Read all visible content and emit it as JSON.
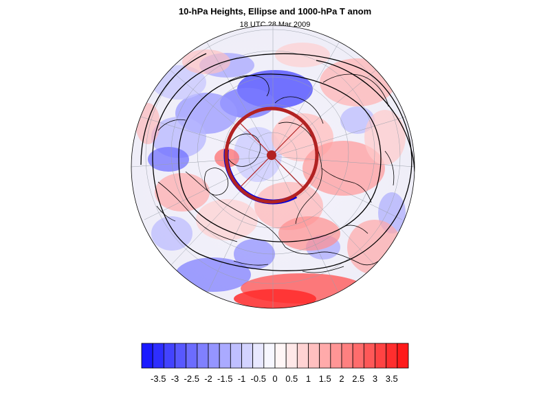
{
  "header": {
    "title": "10-hPa Heights, Ellipse and 1000-hPa T anom",
    "subtitle": "18 UTC 28 Mar 2009"
  },
  "colorbar": {
    "labels": [
      "-3.5",
      "-3",
      "-2.5",
      "-2",
      "-1.5",
      "-1",
      "-0.5",
      "0",
      "0.5",
      "1",
      "1.5",
      "2",
      "2.5",
      "3",
      "3.5"
    ],
    "colors": [
      "#1a1aff",
      "#2e2eff",
      "#4343ff",
      "#5858ff",
      "#6c6cff",
      "#8080ff",
      "#9595ff",
      "#aaaaff",
      "#bfbfff",
      "#d3d3ff",
      "#e8e8ff",
      "#f7f7ff",
      "#fff6f6",
      "#ffe8e8",
      "#ffd3d3",
      "#ffbfbf",
      "#ffaaaa",
      "#ff9595",
      "#ff8080",
      "#ff6c6c",
      "#ff5858",
      "#ff4343",
      "#ff2e2e",
      "#ff1a1a"
    ]
  },
  "map": {
    "projection": "north-polar-orthographic",
    "ellipse_color": "#b22222",
    "ellipse_edge_color": "#0000dd",
    "coast_color": "#000000",
    "contour_color": "#000000"
  }
}
